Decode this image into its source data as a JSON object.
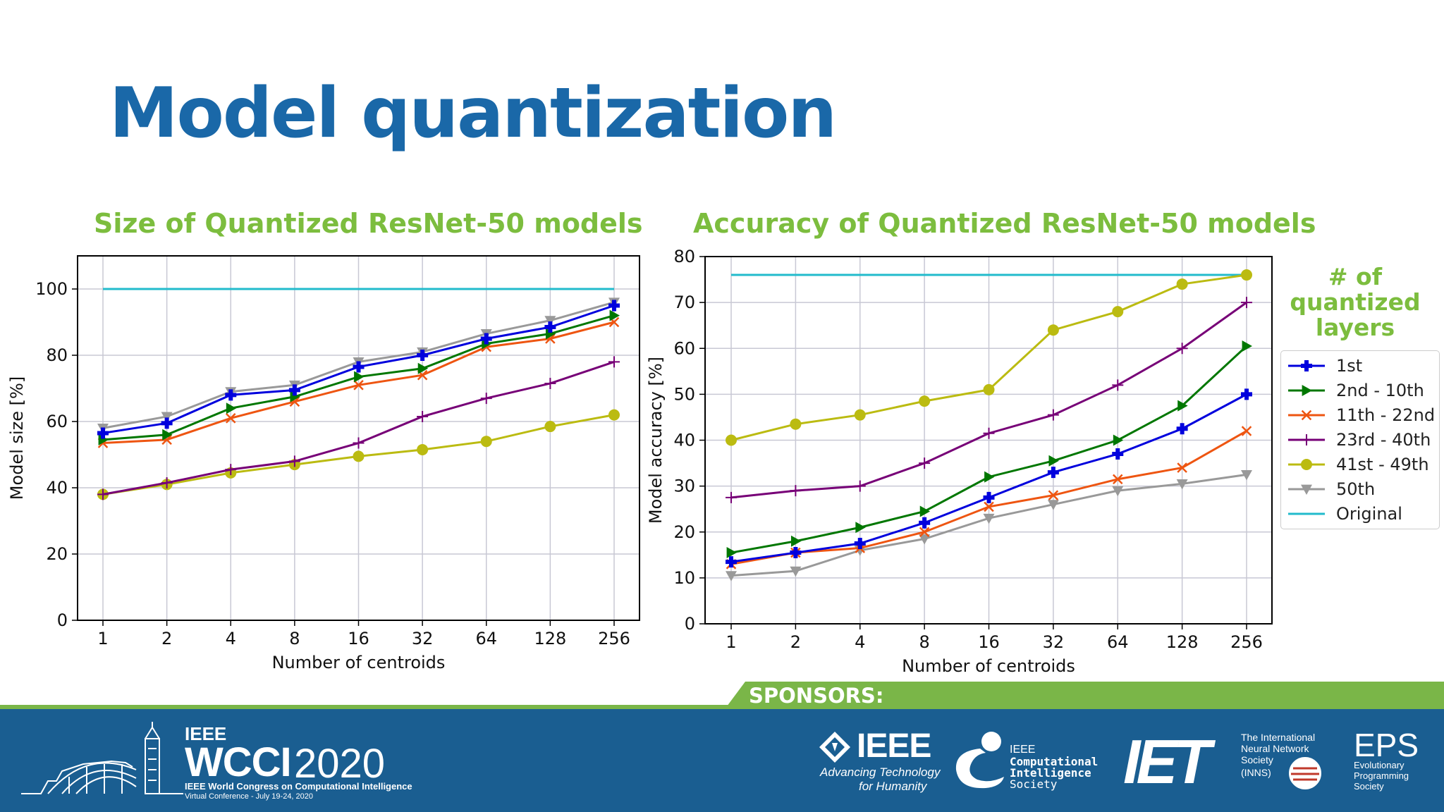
{
  "slide_title": "Model quantization",
  "chart_data": [
    {
      "type": "line",
      "title": "Size  of Quantized ResNet-50 models",
      "xlabel": "Number of centroids",
      "ylabel": "Model size [%]",
      "categories": [
        "1",
        "2",
        "4",
        "8",
        "16",
        "32",
        "64",
        "128",
        "256"
      ],
      "ylim": [
        0,
        110
      ],
      "yticks": [
        0,
        20,
        40,
        60,
        80,
        100
      ],
      "grid": true,
      "series": [
        {
          "name": "1st",
          "color": "#0000dd",
          "marker": "plus",
          "values": [
            56.5,
            59.5,
            68,
            69.5,
            76.5,
            80,
            85,
            88.5,
            95
          ]
        },
        {
          "name": "2nd - 10th",
          "color": "#007700",
          "marker": "triangle-right",
          "values": [
            54.5,
            56,
            64,
            67.5,
            73.5,
            76,
            83.5,
            86.5,
            92
          ]
        },
        {
          "name": "11th - 22nd",
          "color": "#ee5511",
          "marker": "x",
          "values": [
            53.5,
            54.5,
            61,
            66,
            71,
            74,
            82.5,
            85,
            90
          ]
        },
        {
          "name": "23rd - 40th",
          "color": "#770077",
          "marker": "thin-plus",
          "values": [
            38,
            41.5,
            45.5,
            48,
            53.5,
            61.5,
            67,
            71.5,
            78
          ]
        },
        {
          "name": "41st - 49th",
          "color": "#bbbb11",
          "marker": "circle",
          "values": [
            38,
            41,
            44.5,
            47,
            49.5,
            51.5,
            54,
            58.5,
            62
          ]
        },
        {
          "name": "50th",
          "color": "#999999",
          "marker": "triangle-down",
          "values": [
            58,
            61.5,
            69,
            71,
            78,
            81,
            86.5,
            90.5,
            96
          ]
        },
        {
          "name": "Original",
          "color": "#22bbcc",
          "marker": "none",
          "values": [
            100,
            100,
            100,
            100,
            100,
            100,
            100,
            100,
            100
          ]
        }
      ]
    },
    {
      "type": "line",
      "title": "Accuracy of Quantized ResNet-50 models",
      "xlabel": "Number of centroids",
      "ylabel": "Model accuracy [%]",
      "categories": [
        "1",
        "2",
        "4",
        "8",
        "16",
        "32",
        "64",
        "128",
        "256"
      ],
      "ylim": [
        0,
        80
      ],
      "yticks": [
        0,
        10,
        20,
        30,
        40,
        50,
        60,
        70,
        80
      ],
      "grid": true,
      "series": [
        {
          "name": "1st",
          "color": "#0000dd",
          "marker": "plus",
          "values": [
            13.5,
            15.5,
            17.5,
            22,
            27.5,
            33,
            37,
            42.5,
            50
          ]
        },
        {
          "name": "2nd - 10th",
          "color": "#007700",
          "marker": "triangle-right",
          "values": [
            15.5,
            18,
            21,
            24.5,
            32,
            35.5,
            40,
            47.5,
            60.5
          ]
        },
        {
          "name": "11th - 22nd",
          "color": "#ee5511",
          "marker": "x",
          "values": [
            13,
            15.5,
            16.5,
            20,
            25.5,
            28,
            31.5,
            34,
            42
          ]
        },
        {
          "name": "23rd - 40th",
          "color": "#770077",
          "marker": "thin-plus",
          "values": [
            27.5,
            29,
            30,
            35,
            41.5,
            45.5,
            52,
            60,
            70
          ]
        },
        {
          "name": "41st - 49th",
          "color": "#bbbb11",
          "marker": "circle",
          "values": [
            40,
            43.5,
            45.5,
            48.5,
            51,
            64,
            68,
            74,
            76
          ]
        },
        {
          "name": "50th",
          "color": "#999999",
          "marker": "triangle-down",
          "values": [
            10.5,
            11.5,
            16,
            18.5,
            23,
            26,
            29,
            30.5,
            32.5
          ]
        },
        {
          "name": "Original",
          "color": "#22bbcc",
          "marker": "none",
          "values": [
            76,
            76,
            76,
            76,
            76,
            76,
            76,
            76,
            76
          ]
        }
      ]
    }
  ],
  "legend": {
    "title_lines": [
      "# of",
      "quantized",
      "layers"
    ],
    "entries": [
      {
        "label": "1st",
        "color": "#0000dd",
        "marker": "plus"
      },
      {
        "label": "2nd - 10th",
        "color": "#007700",
        "marker": "triangle-right"
      },
      {
        "label": "11th - 22nd",
        "color": "#ee5511",
        "marker": "x"
      },
      {
        "label": "23rd - 40th",
        "color": "#770077",
        "marker": "thin-plus"
      },
      {
        "label": "41st - 49th",
        "color": "#bbbb11",
        "marker": "circle"
      },
      {
        "label": "50th",
        "color": "#999999",
        "marker": "triangle-down"
      },
      {
        "label": "Original",
        "color": "#22bbcc",
        "marker": "none"
      }
    ]
  },
  "footer": {
    "sponsors_label": "SPONSORS:",
    "conference": {
      "ieee": "IEEE",
      "name": "WCCI",
      "year": "2020",
      "full_name": "IEEE World Congress on Computational Intelligence",
      "dates": "Virtual Conference - July 19-24, 2020"
    },
    "sponsors": {
      "ieee_word": "IEEE",
      "ieee_tag_1": "Advancing Technology",
      "ieee_tag_2": "for Humanity",
      "cis_1": "IEEE",
      "cis_2": "Computational",
      "cis_3": "Intelligence",
      "cis_4": "Society",
      "iet": "IET",
      "inns_1": "The International",
      "inns_2": "Neural Network",
      "inns_3": "Society",
      "inns_4": "(INNS)",
      "eps": "EPS",
      "eps_1": "Evolutionary",
      "eps_2": "Programming",
      "eps_3": "Society"
    }
  }
}
